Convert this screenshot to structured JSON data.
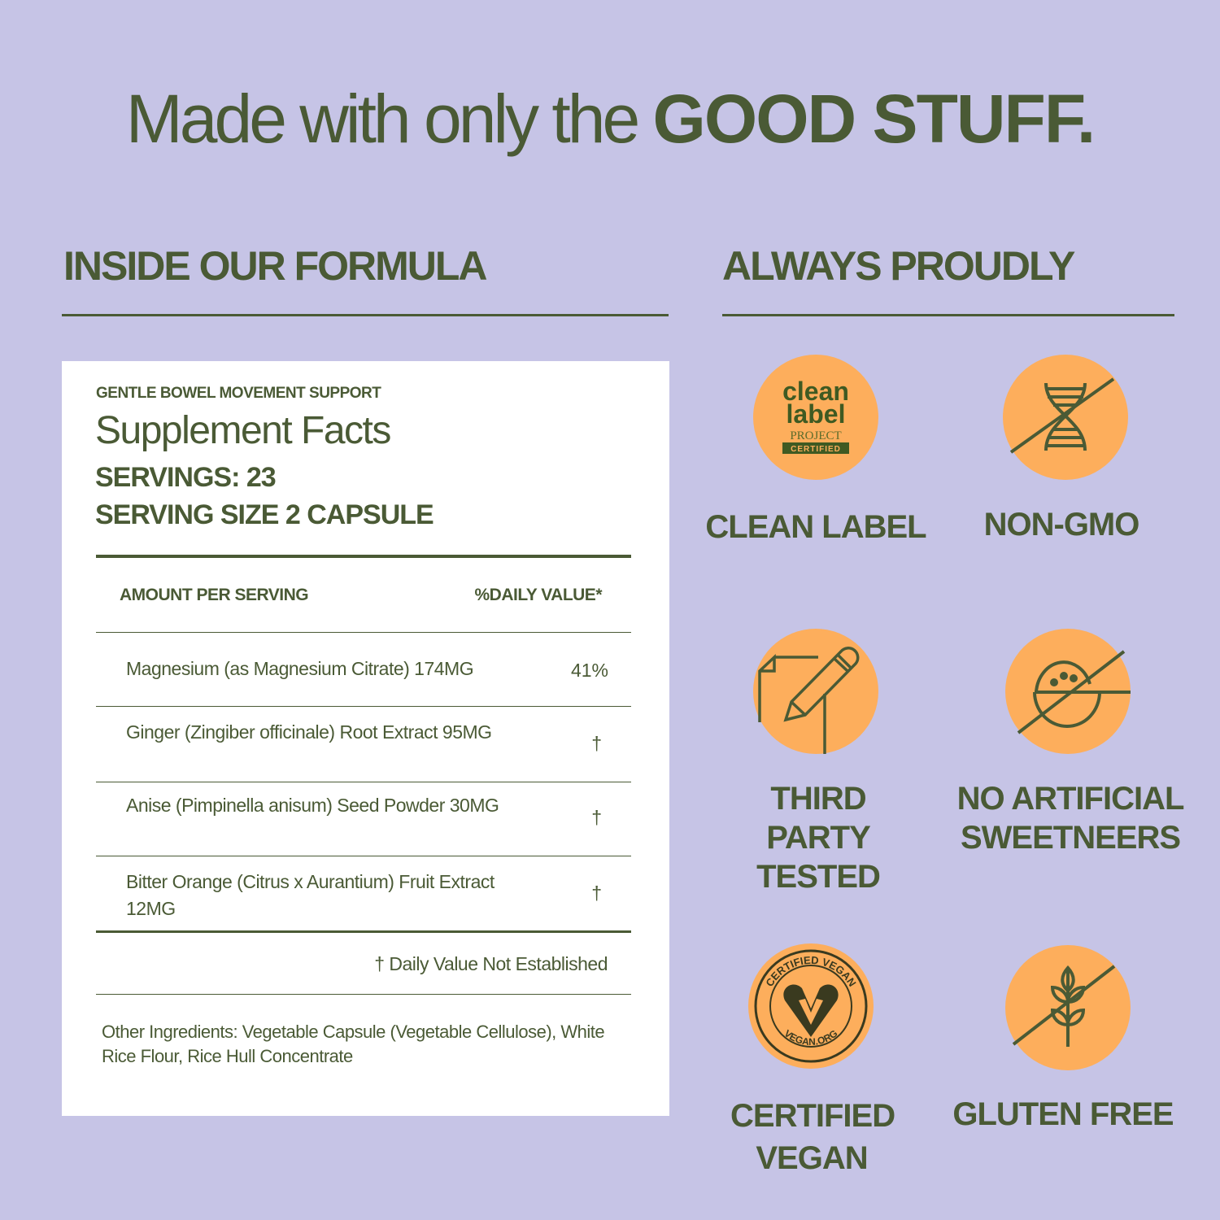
{
  "title": {
    "regular": "Made with only the ",
    "bold": "GOOD STUFF."
  },
  "left_heading": "INSIDE OUR FORMULA",
  "right_heading": "ALWAYS PROUDLY",
  "facts": {
    "subtitle": "GENTLE BOWEL MOVEMENT SUPPORT",
    "title": "Supplement Facts",
    "servings": "SERVINGS: 23",
    "serving_size": "SERVING SIZE 2 CAPSULE",
    "col_amount": "AMOUNT PER SERVING",
    "col_dv": "%DAILY VALUE*",
    "rows": [
      {
        "name": "Magnesium (as Magnesium Citrate) 174MG",
        "dv": "41%"
      },
      {
        "name": "Ginger (Zingiber officinale) Root Extract 95MG",
        "dv": "†"
      },
      {
        "name": "Anise (Pimpinella anisum) Seed Powder 30MG",
        "dv": "†"
      },
      {
        "name": "Bitter Orange (Citrus x Aurantium) Fruit Extract 12MG",
        "dv": "†"
      }
    ],
    "footnote": "† Daily Value Not Established",
    "other": "Other Ingredients: Vegetable Capsule (Vegetable Cellulose), White Rice Flour, Rice Hull Concentrate"
  },
  "badges": [
    {
      "label": "CLEAN LABEL",
      "icon": "clean-label-project-logo",
      "logo_text": [
        "clean",
        "label",
        "PROJECT",
        "CERTIFIED"
      ]
    },
    {
      "label": "NON-GMO",
      "icon": "dna-crossed-icon"
    },
    {
      "label": "THIRD PARTY TESTED",
      "icon": "pencil-paper-icon"
    },
    {
      "label": "NO ARTIFICIAL SWEETNEERS",
      "icon": "sugar-bowl-crossed-icon"
    },
    {
      "label": "CERTIFIED VEGAN",
      "icon": "certified-vegan-logo",
      "logo_text": [
        "CERTIFIED VEGAN",
        "VEGAN.ORG"
      ]
    },
    {
      "label": "GLUTEN FREE",
      "icon": "wheat-crossed-icon"
    }
  ],
  "colors": {
    "background": "#c6c4e6",
    "text": "#4a5a35",
    "badge": "#fdae5c",
    "panel": "#ffffff"
  }
}
